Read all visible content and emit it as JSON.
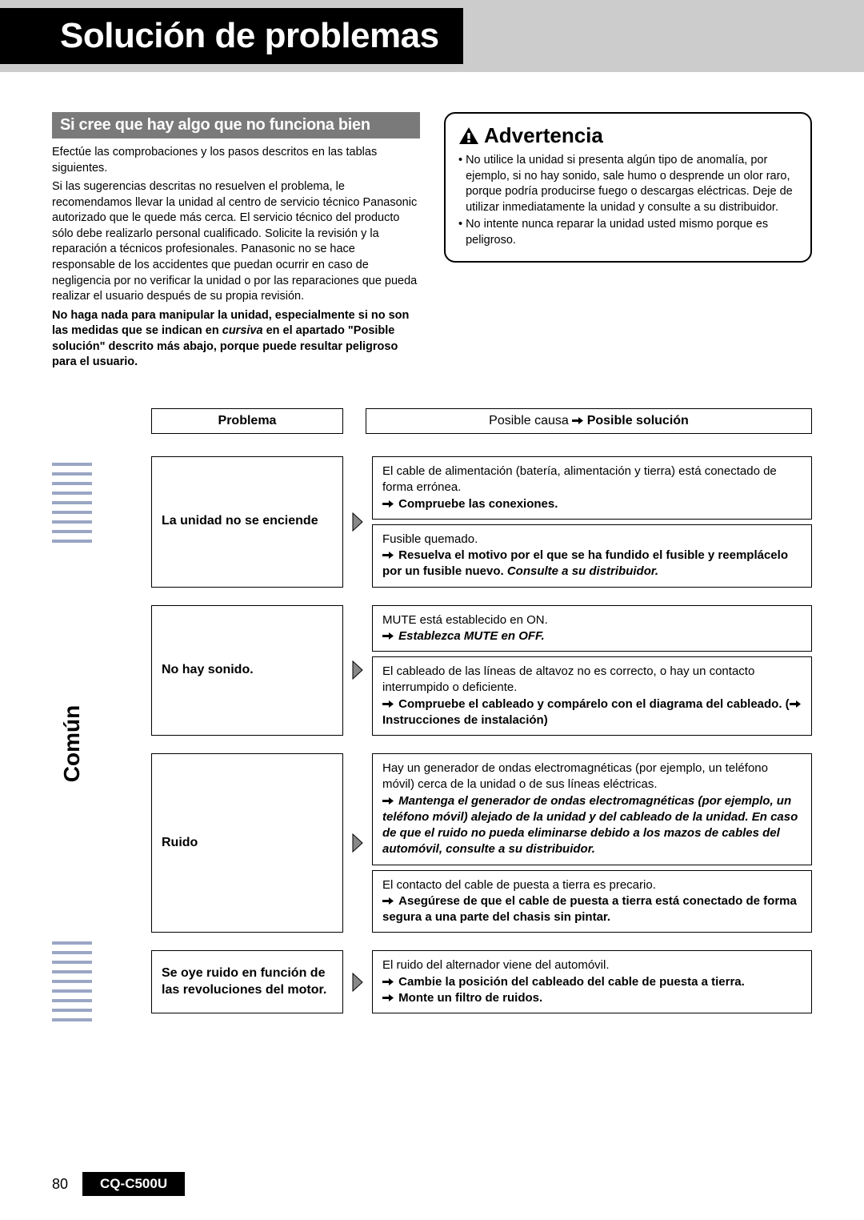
{
  "page_title": "Solución de problemas",
  "section_heading": "Si cree que hay algo que no funciona bien",
  "intro_p1": "Efectúe las comprobaciones y los pasos descritos en las tablas siguientes.",
  "intro_p2": "Si las sugerencias descritas no resuelven el problema, le recomendamos llevar la unidad al centro de servicio técnico Panasonic autorizado que le quede más cerca. El servicio técnico del producto sólo debe realizarlo personal cualificado. Solicite la revisión y la reparación a técnicos profesionales. Panasonic no se hace responsable de los accidentes que puedan ocurrir en caso de negligencia por no verificar la unidad o por las reparaciones que pueda realizar el usuario después de su propia revisión.",
  "intro_bold_pre": "No haga nada para manipular la unidad, especialmente si no son las medidas que se indican en ",
  "intro_bold_italic": "cursiva",
  "intro_bold_post": " en el apartado \"Posible solución\" descrito más abajo, porque puede resultar peligroso para el usuario.",
  "warning_title": "Advertencia",
  "warning_b1": "No utilice la unidad si presenta algún tipo de anomalía, por ejemplo, si no hay sonido, sale humo o desprende un olor raro, porque podría producirse fuego o descargas eléctricas. Deje de utilizar inmediatamente la unidad y consulte a su distribuidor.",
  "warning_b2": "No intente nunca reparar la unidad usted mismo porque es peligroso.",
  "col_problem": "Problema",
  "col_cause_pre": "Posible causa ",
  "col_cause_post": "Posible solución",
  "category": "Común",
  "rows": [
    {
      "problem": "La unidad no se enciende",
      "solutions": [
        {
          "cause": "El cable de alimentación (batería, alimentación y tierra) está conectado de forma errónea.",
          "fix": "Compruebe las conexiones.",
          "italic": false
        },
        {
          "cause": "Fusible quemado.",
          "fix": "Resuelva el motivo por el que se ha fundido el fusible y reemplácelo por un fusible nuevo. ",
          "fix_italic_suffix": "Consulte a su distribuidor.",
          "italic": false
        }
      ]
    },
    {
      "problem": "No hay sonido.",
      "solutions": [
        {
          "cause": "MUTE está establecido en ON.",
          "fix": "Establezca MUTE en OFF.",
          "italic": true
        },
        {
          "cause": "El cableado de las líneas de altavoz no es correcto, o hay un contacto interrumpido o deficiente.",
          "fix": "Compruebe el cableado y compárelo con el diagrama del cableado. (",
          "fix_suffix": " Instrucciones de instalación)",
          "italic": false,
          "inline_arrow": true
        }
      ]
    },
    {
      "problem": "Ruido",
      "solutions": [
        {
          "cause": "Hay un generador de ondas electromagnéticas (por ejemplo, un teléfono móvil) cerca de la unidad o de sus líneas eléctricas.",
          "fix": "Mantenga el generador de ondas electromagnéticas (por ejemplo, un teléfono móvil) alejado de la unidad y del cableado de la unidad. En caso de que el ruido no pueda eliminarse debido a los mazos de cables del automóvil, consulte a su distribuidor.",
          "italic": true
        },
        {
          "cause": "El contacto del cable de puesta a tierra es precario.",
          "fix": "Asegúrese de que el cable de puesta a tierra está conectado de forma segura a una parte del chasis sin pintar.",
          "italic": false
        }
      ]
    },
    {
      "problem": "Se oye ruido en función de las revoluciones del motor.",
      "solutions": [
        {
          "cause": "El ruido del alternador viene del automóvil.",
          "fix": "Cambie la posición del cableado del cable de puesta a tierra.",
          "fix2": "Monte un filtro de ruidos.",
          "italic": false
        }
      ]
    }
  ],
  "page_number": "80",
  "model": "CQ-C500U",
  "colors": {
    "topbar": "#cccccc",
    "title_bg": "#000000",
    "subheading_bg": "#7a7a7a",
    "border": "#000000",
    "arrow_fill": "#888888"
  }
}
